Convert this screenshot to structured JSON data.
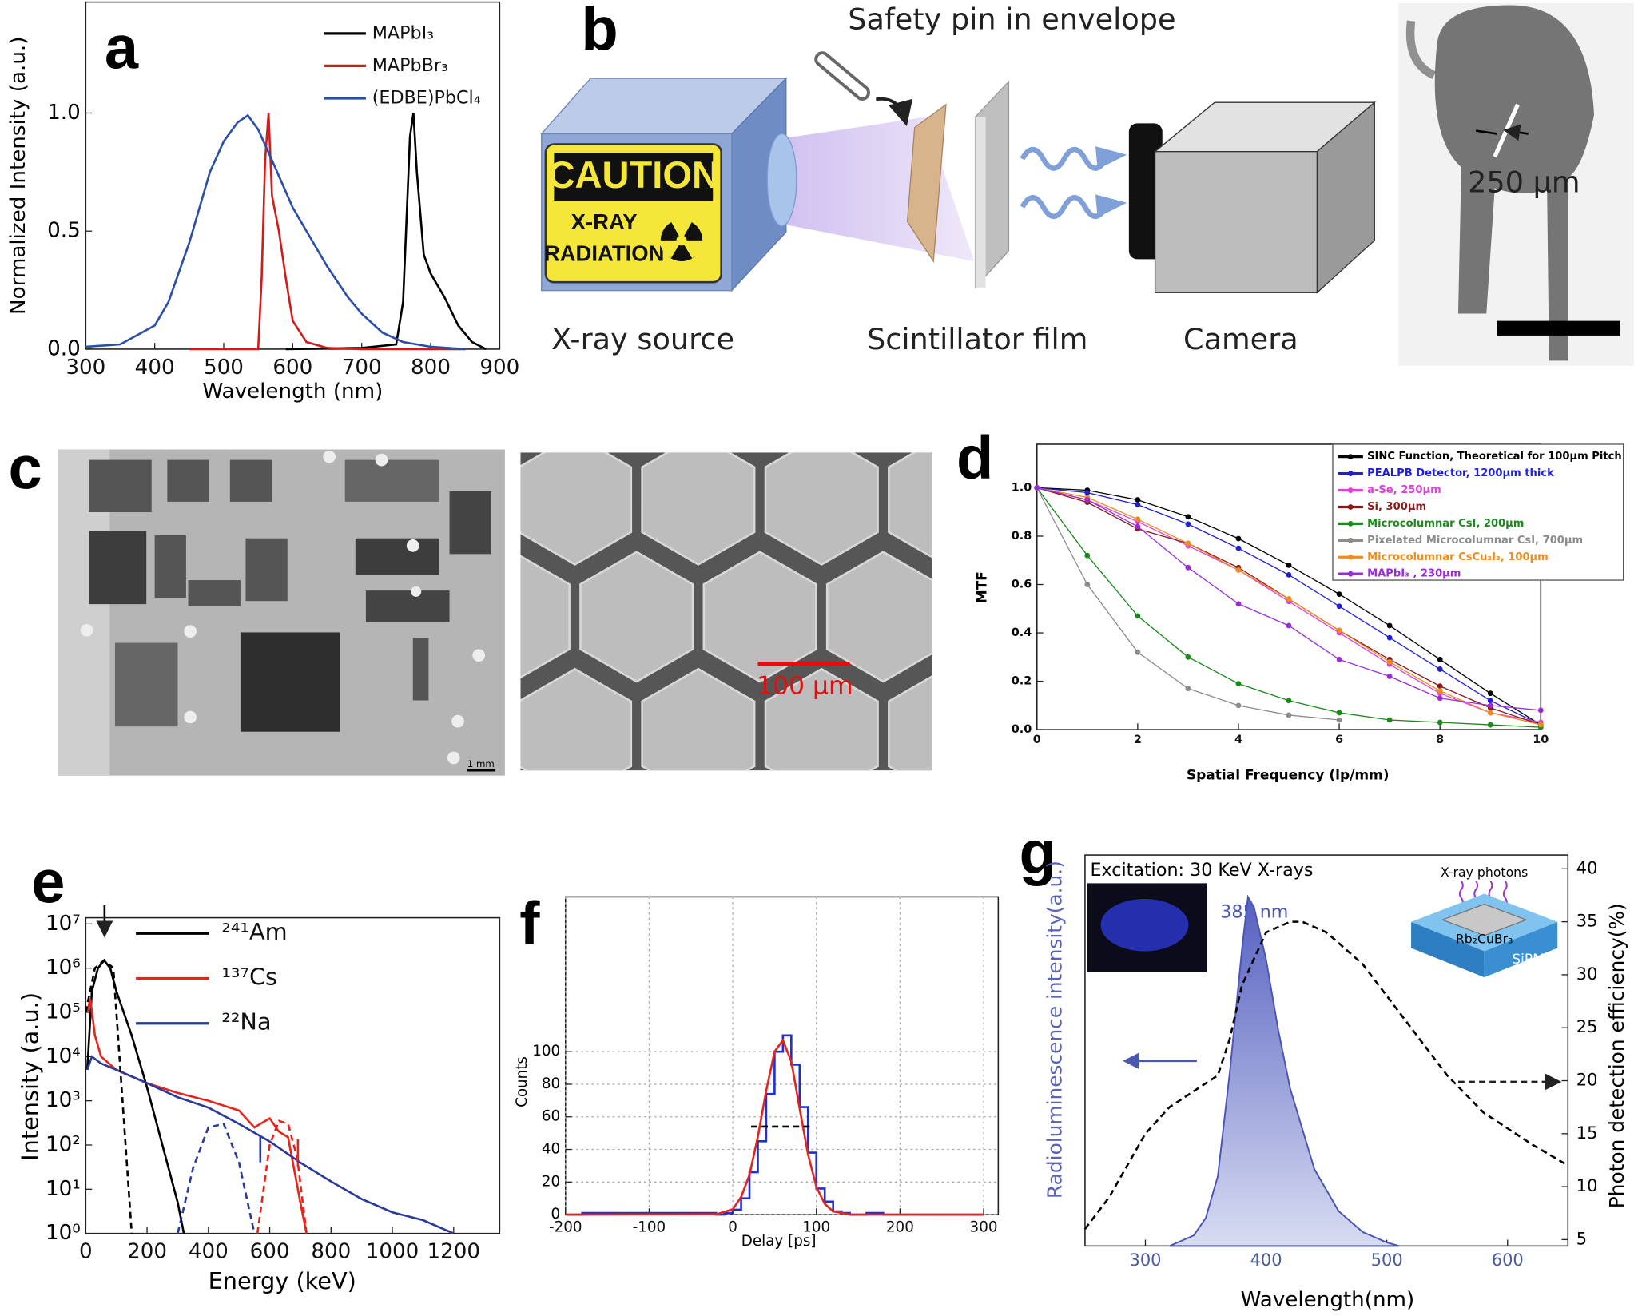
{
  "figure": {
    "panel_labels": [
      "a",
      "b",
      "c",
      "d",
      "e",
      "f",
      "g"
    ],
    "b": {
      "title": "Safety pin in envelope",
      "caution": "CAUTION",
      "xray": "X-RAY",
      "radiation": "RADIATION",
      "source": "X-ray source",
      "film": "Scintillator film",
      "camera": "Camera",
      "width": "250 μm"
    },
    "c": {
      "scale_left": "1 mm",
      "scale_right": "100 μm"
    },
    "g": {
      "title": "Excitation: 30 KeV X-rays",
      "peak": "385 nm",
      "photons": "X-ray photons",
      "crystal": "Rb₂CuBr₃",
      "detector": "SiPM"
    }
  },
  "chart_data": [
    {
      "type": "line",
      "x_label": "Wavelength (nm)",
      "y_label": "Normalized Intensity (a.u.)",
      "xlim": [
        300,
        900
      ],
      "ylim": [
        0,
        1.47
      ],
      "xticks": [
        300,
        400,
        500,
        600,
        700,
        800,
        900
      ],
      "yticks": [
        {
          "value": 0,
          "label": "0.0"
        },
        {
          "value": 0.5,
          "label": "0.5"
        },
        {
          "value": 1,
          "label": "1.0"
        }
      ],
      "legend": "upper right",
      "series": [
        {
          "name": "MAPbI₃",
          "color": "#000000",
          "x": [
            590,
            650,
            700,
            750,
            760,
            770,
            775,
            780,
            790,
            800,
            820,
            840,
            860,
            880
          ],
          "values": [
            0,
            0.003,
            0.005,
            0.02,
            0.2,
            0.9,
            1.0,
            0.75,
            0.4,
            0.32,
            0.22,
            0.1,
            0.03,
            0
          ]
        },
        {
          "name": "MAPbBr₃",
          "color": "#d01c1c",
          "x": [
            450,
            550,
            555,
            560,
            565,
            570,
            580,
            590,
            600,
            620,
            650,
            700,
            850
          ],
          "values": [
            0,
            0,
            0.3,
            0.8,
            1.0,
            0.65,
            0.5,
            0.3,
            0.12,
            0.03,
            0.005,
            0,
            0
          ]
        },
        {
          "name": "(EDBE)PbCl₄",
          "color": "#2b4fa8",
          "x": [
            300,
            350,
            400,
            420,
            450,
            480,
            500,
            520,
            535,
            550,
            570,
            600,
            630,
            650,
            680,
            700,
            730,
            760,
            800,
            850
          ],
          "values": [
            0.01,
            0.02,
            0.1,
            0.2,
            0.45,
            0.75,
            0.88,
            0.96,
            0.99,
            0.93,
            0.8,
            0.6,
            0.45,
            0.35,
            0.22,
            0.15,
            0.07,
            0.03,
            0.01,
            0
          ]
        }
      ]
    },
    {
      "type": "line",
      "x_label": "Spatial Frequency (lp/mm)",
      "y_label": "MTF",
      "xlim": [
        0,
        10
      ],
      "ylim": [
        0,
        1.18
      ],
      "xticks": [
        0,
        2,
        4,
        6,
        8,
        10
      ],
      "yticks": [
        {
          "value": 0,
          "label": "0.0"
        },
        {
          "value": 0.2,
          "label": "0.2"
        },
        {
          "value": 0.4,
          "label": "0.4"
        },
        {
          "value": 0.6,
          "label": "0.6"
        },
        {
          "value": 0.8,
          "label": "0.8"
        },
        {
          "value": 1,
          "label": "1.0"
        }
      ],
      "legend": "upper right",
      "markers": true,
      "x": [
        0,
        1,
        2,
        3,
        4,
        5,
        6,
        7,
        8,
        9,
        10
      ],
      "series": [
        {
          "name": "SINC Function, Theoretical for 100μm Pitch",
          "color": "#000000",
          "values": [
            1,
            0.99,
            0.95,
            0.88,
            0.79,
            0.68,
            0.56,
            0.43,
            0.29,
            0.15,
            0.02
          ]
        },
        {
          "name": "PEALPB Detector, 1200μm thick",
          "color": "#1f1fd6",
          "values": [
            1,
            0.98,
            0.93,
            0.85,
            0.75,
            0.64,
            0.51,
            0.38,
            0.25,
            0.12,
            0.02
          ]
        },
        {
          "name": "a-Se, 250μm",
          "color": "#e040e0",
          "values": [
            1,
            0.95,
            0.86,
            0.76,
            0.66,
            0.53,
            0.4,
            0.27,
            0.15,
            0.07,
            0.03
          ]
        },
        {
          "name": "Si, 300μm",
          "color": "#8b1a1a",
          "values": [
            1,
            0.94,
            0.83,
            0.77,
            0.67,
            0.54,
            0.41,
            0.29,
            0.18,
            0.09,
            0.02
          ]
        },
        {
          "name": "Microcolumnar CsI, 200μm",
          "color": "#1a8a1a",
          "values": [
            1,
            0.72,
            0.47,
            0.3,
            0.19,
            0.12,
            0.07,
            0.04,
            0.03,
            0.02,
            0.01
          ]
        },
        {
          "name": "Pixelated Microcolumnar CsI, 700μm",
          "color": "#8c8c8c",
          "values": [
            1,
            0.6,
            0.32,
            0.17,
            0.1,
            0.06,
            0.04,
            null,
            null,
            null,
            null
          ]
        },
        {
          "name": "Microcolumnar CsCu₂I₃, 100μm",
          "color": "#f08c1a",
          "values": [
            1,
            0.96,
            0.87,
            0.77,
            0.66,
            0.54,
            0.41,
            0.28,
            0.16,
            0.07,
            0.02
          ]
        },
        {
          "name": "MAPbI₃ , 230μm",
          "color": "#9a2bd6",
          "values": [
            1,
            0.95,
            0.84,
            0.67,
            0.52,
            0.43,
            0.29,
            0.22,
            0.13,
            0.1,
            0.08
          ]
        }
      ]
    },
    {
      "type": "line",
      "x_label": "Energy (keV)",
      "y_label": "Intensity (a.u.)",
      "log_y": true,
      "xlim": [
        0,
        1350
      ],
      "ylim": [
        1,
        13800000
      ],
      "xticks": [
        0,
        200,
        400,
        600,
        800,
        1000,
        1200
      ],
      "yticks": [
        {
          "value": 1,
          "label": "10⁰"
        },
        {
          "value": 10,
          "label": "10¹"
        },
        {
          "value": 100,
          "label": "10²"
        },
        {
          "value": 1000,
          "label": "10³"
        },
        {
          "value": 10000,
          "label": "10⁴"
        },
        {
          "value": 100000,
          "label": "10⁵"
        },
        {
          "value": 1000000,
          "label": "10⁶"
        },
        {
          "value": 10000000,
          "label": "10⁷"
        }
      ],
      "legend": "upper left",
      "series": [
        {
          "name": "²⁴¹Am",
          "color": "#000000",
          "x": [
            5,
            20,
            40,
            60,
            80,
            100,
            150,
            200,
            250,
            300,
            320
          ],
          "values": [
            5000,
            300000,
            1000000,
            1500000,
            1000000,
            300000,
            30000,
            2000,
            100,
            5,
            1
          ]
        },
        {
          "name": "¹³⁷Cs",
          "color": "#e8231c",
          "x": [
            5,
            15,
            30,
            50,
            100,
            200,
            300,
            400,
            500,
            550,
            600,
            630,
            660,
            700,
            720
          ],
          "values": [
            100000,
            200000,
            30000,
            10000,
            5000,
            2500,
            1500,
            1000,
            600,
            250,
            400,
            200,
            150,
            5,
            1
          ]
        },
        {
          "name": "²²Na",
          "color": "#2a3a9a",
          "x": [
            5,
            20,
            50,
            100,
            200,
            300,
            400,
            500,
            600,
            700,
            800,
            900,
            1000,
            1100,
            1200
          ],
          "values": [
            5000,
            10000,
            7000,
            5000,
            2500,
            1200,
            700,
            300,
            120,
            40,
            15,
            6,
            3,
            2,
            1
          ]
        },
        {
          "color": "#000000",
          "dashed": true,
          "x": [
            0,
            30,
            60,
            90,
            120,
            150
          ],
          "values": [
            100000,
            1000000,
            1500000,
            1000000,
            1000,
            1
          ]
        },
        {
          "color": "#2a3a9a",
          "dashed": true,
          "x": [
            300,
            350,
            400,
            450,
            500,
            550
          ],
          "values": [
            1,
            30,
            250,
            300,
            40,
            1
          ]
        },
        {
          "color": "#e8231c",
          "dashed": true,
          "x": [
            560,
            600,
            630,
            660,
            690,
            720
          ],
          "values": [
            1,
            100,
            350,
            300,
            50,
            1
          ]
        }
      ]
    },
    {
      "type": "line",
      "x_label": "Delay [ps]",
      "y_label": "Counts",
      "xlim": [
        -200,
        317.5
      ],
      "ylim": [
        0,
        195
      ],
      "xticks": [
        -200,
        -100,
        0,
        100,
        200,
        300
      ],
      "yticks": [
        0,
        20,
        40,
        60,
        80,
        100
      ],
      "grid": true,
      "series": [
        {
          "color": "#1f2fd6",
          "step": true,
          "x": [
            -200,
            -180,
            -20,
            -10,
            0,
            10,
            20,
            30,
            40,
            50,
            60,
            70,
            80,
            90,
            100,
            110,
            120,
            130,
            140,
            160,
            180,
            300
          ],
          "values": [
            0,
            1,
            0,
            1,
            3,
            10,
            26,
            45,
            74,
            100,
            110,
            92,
            66,
            38,
            16,
            8,
            2,
            1,
            0,
            1,
            0,
            0
          ]
        },
        {
          "color": "#e8231c",
          "x": [
            -200,
            -20,
            0,
            10,
            20,
            30,
            40,
            50,
            60,
            70,
            80,
            90,
            100,
            110,
            120,
            140,
            300
          ],
          "values": [
            0,
            0.2,
            3.3,
            10.8,
            24.4,
            47.6,
            76,
            100,
            107,
            94,
            65,
            37,
            17,
            6.6,
            2,
            0.1,
            0
          ]
        },
        {
          "color": "#000000",
          "dashed": true,
          "x": [
            22,
            95
          ],
          "values": [
            54,
            54
          ]
        }
      ]
    },
    {
      "type": "line",
      "x_label": "Wavelength(nm)",
      "y_label": "Radioluminescence intensity(a.u.)",
      "y2_label": "Photon detection efficiency(%)",
      "xlim": [
        250,
        650
      ],
      "ylim": [
        0,
        1.12
      ],
      "y2lim": [
        4.4,
        41.3
      ],
      "xticks": [
        300,
        400,
        500,
        600
      ],
      "y2ticks": [
        5,
        10,
        15,
        20,
        25,
        30,
        35,
        40
      ],
      "series": [
        {
          "color": "#4a55b5",
          "fill": true,
          "x": [
            320,
            340,
            350,
            360,
            370,
            380,
            385,
            390,
            400,
            410,
            420,
            440,
            460,
            480,
            500,
            510
          ],
          "values": [
            0,
            0.03,
            0.08,
            0.2,
            0.5,
            0.85,
            1.0,
            0.97,
            0.82,
            0.62,
            0.45,
            0.22,
            0.1,
            0.04,
            0.01,
            0
          ]
        },
        {
          "color": "#000000",
          "dashed": true,
          "axis": "y2",
          "x": [
            250,
            270,
            300,
            320,
            340,
            360,
            370,
            380,
            400,
            420,
            430,
            450,
            480,
            500,
            520,
            550,
            580,
            600,
            620,
            650
          ],
          "values": [
            6,
            9,
            15,
            17.5,
            19,
            20.5,
            24,
            29,
            34,
            35,
            35,
            34,
            31,
            28,
            25,
            20.5,
            17,
            15.5,
            14,
            12
          ]
        }
      ]
    }
  ]
}
